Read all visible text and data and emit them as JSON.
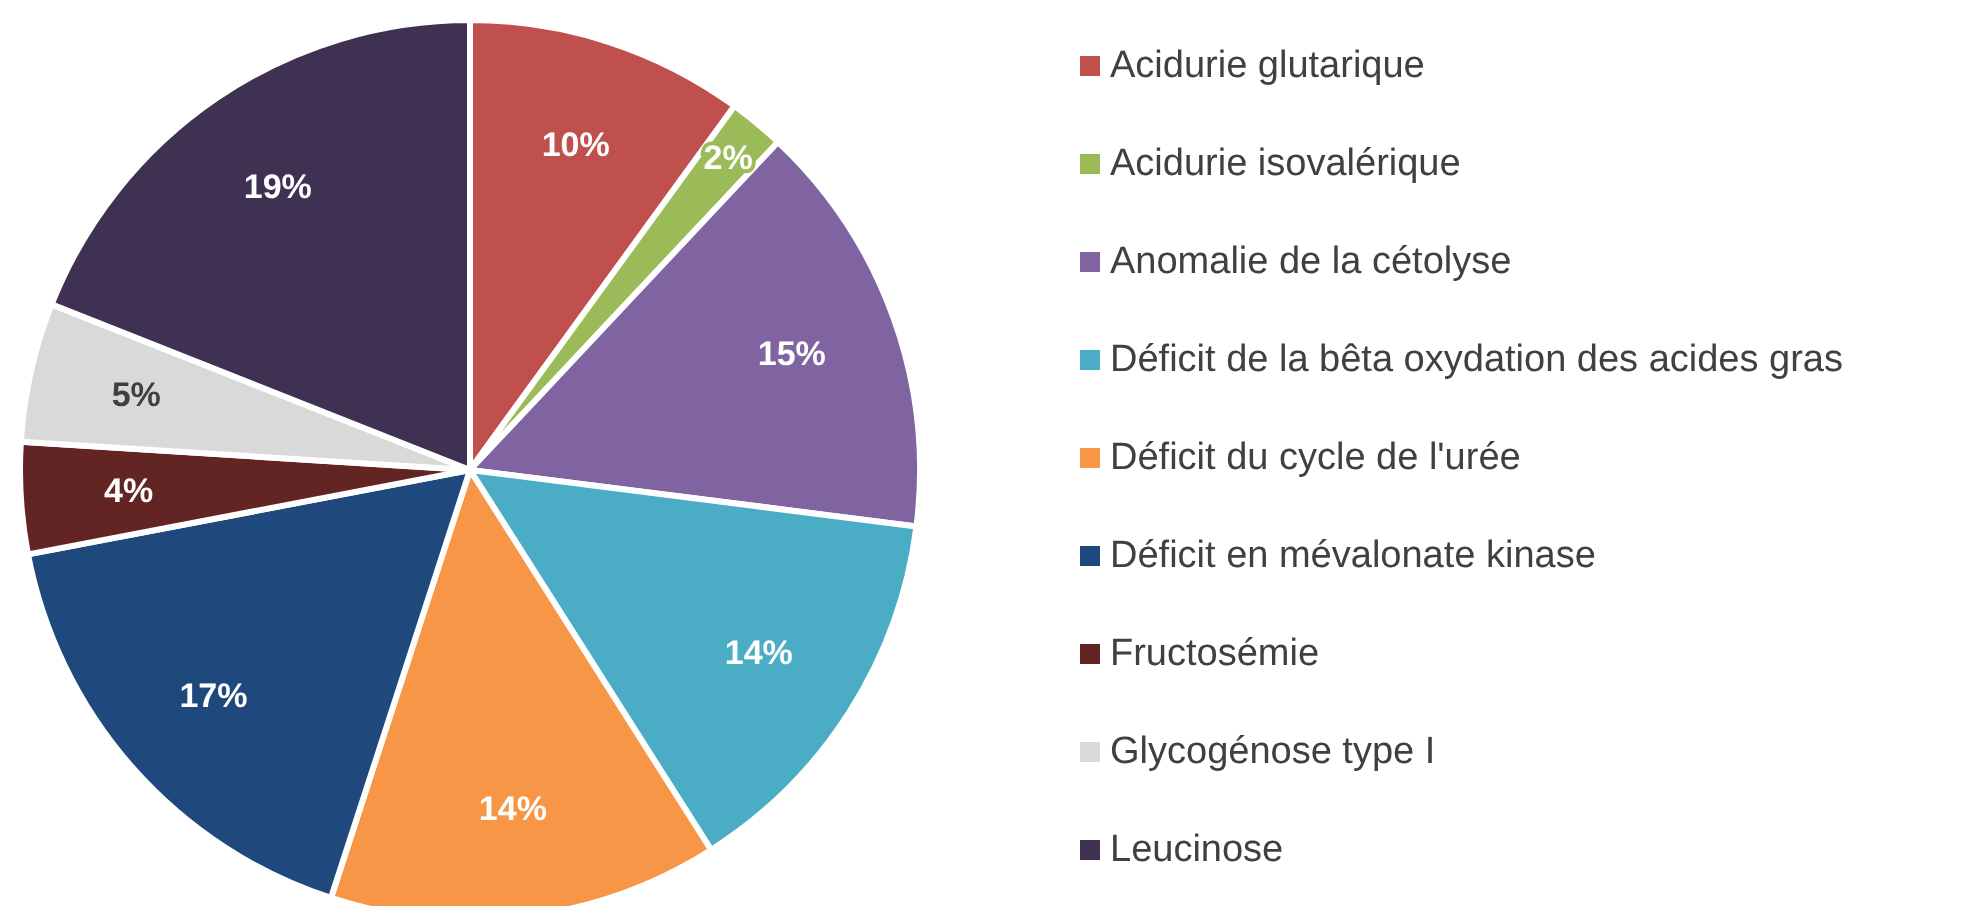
{
  "chart_data": {
    "type": "pie",
    "categories": [
      "Acidurie glutarique",
      "Acidurie isovalérique",
      "Anomalie de la cétolyse",
      "Déficit de la bêta oxydation des acides gras",
      "Déficit du cycle de l'urée",
      "Déficit en mévalonate kinase",
      "Fructosémie",
      "Glycogénose type I",
      "Leucinose"
    ],
    "values": [
      10,
      2,
      15,
      14,
      14,
      17,
      4,
      5,
      19
    ],
    "value_labels": [
      "10%",
      "2%",
      "15%",
      "14%",
      "14%",
      "17%",
      "4%",
      "5%",
      "19%"
    ],
    "colors": [
      "#c0504d",
      "#9bbb59",
      "#8064a2",
      "#4bacc6",
      "#f79646",
      "#1f497d",
      "#632523",
      "#d9d9d9",
      "#3f3151"
    ],
    "legend": "right"
  }
}
